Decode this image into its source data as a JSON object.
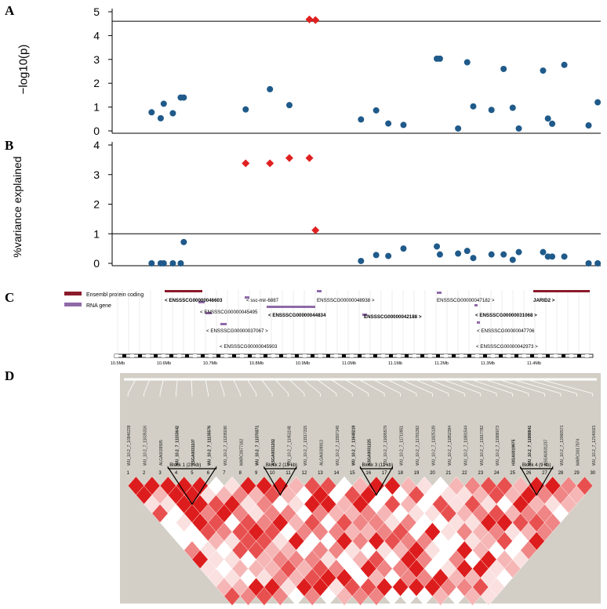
{
  "panels": {
    "a": "A",
    "b": "B",
    "c": "C",
    "d": "D"
  },
  "chart_data": [
    {
      "type": "scatter",
      "ylabel": "−log10(p)",
      "ylim": [
        0,
        5
      ],
      "yticks": [
        "0",
        "1",
        "2",
        "3",
        "4",
        "5"
      ],
      "threshold": 4.6,
      "points": [
        {
          "x": 10.505,
          "y": 0.78
        },
        {
          "x": 10.52,
          "y": 0.53
        },
        {
          "x": 10.525,
          "y": 1.14
        },
        {
          "x": 10.54,
          "y": 0.74
        },
        {
          "x": 10.553,
          "y": 1.4
        },
        {
          "x": 10.558,
          "y": 1.4
        },
        {
          "x": 10.66,
          "y": 0.9
        },
        {
          "x": 10.7,
          "y": 1.75
        },
        {
          "x": 10.732,
          "y": 1.08
        },
        {
          "x": 10.85,
          "y": 0.48
        },
        {
          "x": 10.875,
          "y": 0.86
        },
        {
          "x": 10.895,
          "y": 0.31
        },
        {
          "x": 10.92,
          "y": 0.25
        },
        {
          "x": 10.975,
          "y": 3.03
        },
        {
          "x": 10.98,
          "y": 3.03
        },
        {
          "x": 11.01,
          "y": 0.1
        },
        {
          "x": 11.025,
          "y": 2.88
        },
        {
          "x": 11.035,
          "y": 1.03
        },
        {
          "x": 11.065,
          "y": 0.88
        },
        {
          "x": 11.085,
          "y": 2.6
        },
        {
          "x": 11.1,
          "y": 0.97
        },
        {
          "x": 11.11,
          "y": 0.1
        },
        {
          "x": 11.15,
          "y": 2.53
        },
        {
          "x": 11.158,
          "y": 0.52
        },
        {
          "x": 11.165,
          "y": 0.3
        },
        {
          "x": 11.185,
          "y": 2.77
        },
        {
          "x": 11.225,
          "y": 0.23
        },
        {
          "x": 11.24,
          "y": 1.2
        }
      ],
      "highlight": [
        {
          "x": 10.765,
          "y": 4.68
        },
        {
          "x": 10.775,
          "y": 4.65
        }
      ]
    },
    {
      "type": "scatter",
      "ylabel": "%variance explained",
      "ylim": [
        0,
        4
      ],
      "yticks": [
        "0",
        "1",
        "2",
        "3",
        "4"
      ],
      "threshold": 1,
      "points": [
        {
          "x": 10.505,
          "y": 0.0
        },
        {
          "x": 10.52,
          "y": 0.0
        },
        {
          "x": 10.525,
          "y": 0.0
        },
        {
          "x": 10.54,
          "y": 0.0
        },
        {
          "x": 10.553,
          "y": 0.0
        },
        {
          "x": 10.558,
          "y": 0.72
        },
        {
          "x": 10.85,
          "y": 0.08
        },
        {
          "x": 10.875,
          "y": 0.28
        },
        {
          "x": 10.895,
          "y": 0.25
        },
        {
          "x": 10.92,
          "y": 0.5
        },
        {
          "x": 10.975,
          "y": 0.57
        },
        {
          "x": 10.98,
          "y": 0.3
        },
        {
          "x": 11.01,
          "y": 0.33
        },
        {
          "x": 11.025,
          "y": 0.42
        },
        {
          "x": 11.035,
          "y": 0.18
        },
        {
          "x": 11.065,
          "y": 0.3
        },
        {
          "x": 11.085,
          "y": 0.3
        },
        {
          "x": 11.1,
          "y": 0.12
        },
        {
          "x": 11.11,
          "y": 0.38
        },
        {
          "x": 11.15,
          "y": 0.38
        },
        {
          "x": 11.158,
          "y": 0.23
        },
        {
          "x": 11.165,
          "y": 0.23
        },
        {
          "x": 11.185,
          "y": 0.23
        },
        {
          "x": 11.225,
          "y": 0.0
        },
        {
          "x": 11.24,
          "y": 0.0
        }
      ],
      "highlight": [
        {
          "x": 10.66,
          "y": 3.38
        },
        {
          "x": 10.7,
          "y": 3.38
        },
        {
          "x": 10.732,
          "y": 3.56
        },
        {
          "x": 10.765,
          "y": 3.56
        },
        {
          "x": 10.775,
          "y": 1.12
        }
      ]
    }
  ],
  "genes": {
    "legend": [
      "Ensembl protein coding",
      "RNA gene"
    ],
    "axis_ticks": [
      "10.5Mb",
      "10.6Mb",
      "10.7Mb",
      "10.8Mb",
      "10.9Mb",
      "11.0Mb",
      "11.1Mb",
      "11.2Mb",
      "11.3Mb",
      "11.4Mb"
    ],
    "labels": [
      "< ENSSSCG00000046603",
      "< ENSSSCG00000045495",
      "< ENSSSCG00000037067 >",
      "< ENSSSCG00000045903",
      "< ssc-mir-6887",
      "< ENSSSCG00000044834",
      "ENSSSCG00000048938 >",
      "ENSSSCG00000042188 >",
      "ENSSSCG00000047182 >",
      "< ENSSSCG00000031068 >",
      "< ENSSSCG00000047706",
      "< ENSSSCG00000042973 >",
      "JARID2 >"
    ]
  },
  "ld": {
    "marker_numbers": [
      "1",
      "2",
      "3",
      "4",
      "5",
      "6",
      "7",
      "8",
      "9",
      "10",
      "11",
      "12",
      "13",
      "14",
      "15",
      "16",
      "17",
      "18",
      "19",
      "20",
      "21",
      "22",
      "23",
      "24",
      "25",
      "26",
      "27",
      "28",
      "29",
      "30"
    ],
    "markers": [
      "WU_10.2_7_10946239",
      "WU_10.2_7_11035316",
      "ALGA0039585",
      "WU_10.2_7_11153642",
      "ASGA0031107",
      "WU_10.2_7_11135576",
      "WU_10.2_7_11205036",
      "MARC0077162",
      "WU_10.2_7_11370371",
      "ASGA0031202",
      "WU_10.2_7_11451148",
      "WU_10.2_7_11517315",
      "ALGA0039913",
      "WU_10.2_7_11597149",
      "WU_10.2_7_11648219",
      "ASGA0031225",
      "WU_10.2_7_11685579",
      "WU_10.2_7_11710951",
      "WU_10.2_7_11781392",
      "WU_10.2_7_11825139",
      "WU_10.2_7_11852394",
      "WU_10.2_7_11881544",
      "WU_10.2_7_11917782",
      "WU_10.2_7_11988073",
      "H3GA0019975",
      "WU_10.2_7_11988841",
      "ASGA0031237",
      "WU_10.2_7_12066571",
      "MARC0017974",
      "WU_10.2_7_12140021"
    ],
    "blocks": [
      "Block 1 (21 kb)",
      "Block 2 (15 kb)",
      "Block 3 (11 kb)",
      "Block 4 (9 kb)"
    ]
  }
}
